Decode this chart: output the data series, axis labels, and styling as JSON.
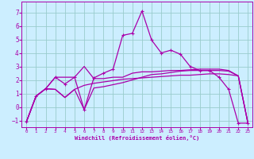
{
  "xlabel": "Windchill (Refroidissement éolien,°C)",
  "xlim": [
    -0.5,
    23.5
  ],
  "ylim": [
    -1.5,
    7.8
  ],
  "yticks": [
    -1,
    0,
    1,
    2,
    3,
    4,
    5,
    6,
    7
  ],
  "xticks": [
    0,
    1,
    2,
    3,
    4,
    5,
    6,
    7,
    8,
    9,
    10,
    11,
    12,
    13,
    14,
    15,
    16,
    17,
    18,
    19,
    20,
    21,
    22,
    23
  ],
  "bg_color": "#cceeff",
  "grid_color": "#99cccc",
  "line_color": "#aa00aa",
  "line1_x": [
    0,
    1,
    2,
    3,
    4,
    5,
    6,
    7,
    8,
    9,
    10,
    11,
    12,
    13,
    14,
    15,
    16,
    17,
    18,
    19,
    20,
    21,
    22,
    23
  ],
  "line1_y": [
    -1.1,
    0.8,
    1.35,
    2.2,
    1.7,
    2.2,
    -0.2,
    2.15,
    2.5,
    2.8,
    5.3,
    5.45,
    7.1,
    4.95,
    4.0,
    4.2,
    3.9,
    3.0,
    2.7,
    2.7,
    2.2,
    1.3,
    -1.2,
    -1.2
  ],
  "line2_x": [
    0,
    1,
    2,
    3,
    4,
    5,
    6,
    7,
    8,
    9,
    10,
    11,
    12,
    13,
    14,
    15,
    16,
    17,
    18,
    19,
    20,
    21,
    22,
    23
  ],
  "line2_y": [
    -1.1,
    0.8,
    1.35,
    1.3,
    0.7,
    1.3,
    1.6,
    1.75,
    1.85,
    1.95,
    2.05,
    2.1,
    2.15,
    2.2,
    2.25,
    2.3,
    2.35,
    2.35,
    2.4,
    2.45,
    2.45,
    2.4,
    2.3,
    -1.2
  ],
  "line3_x": [
    0,
    1,
    2,
    3,
    4,
    5,
    6,
    7,
    8,
    9,
    10,
    11,
    12,
    13,
    14,
    15,
    16,
    17,
    18,
    19,
    20,
    21,
    22,
    23
  ],
  "line3_y": [
    -1.1,
    0.8,
    1.35,
    2.2,
    2.2,
    2.2,
    3.0,
    2.1,
    2.1,
    2.2,
    2.2,
    2.5,
    2.6,
    2.6,
    2.65,
    2.7,
    2.7,
    2.75,
    2.8,
    2.8,
    2.8,
    2.7,
    2.3,
    -1.2
  ],
  "line4_x": [
    0,
    1,
    2,
    3,
    4,
    5,
    6,
    7,
    8,
    9,
    10,
    11,
    12,
    13,
    14,
    15,
    16,
    17,
    18,
    19,
    20,
    21,
    22,
    23
  ],
  "line4_y": [
    -1.1,
    0.8,
    1.35,
    1.3,
    0.7,
    1.3,
    -0.2,
    1.4,
    1.5,
    1.65,
    1.8,
    2.0,
    2.2,
    2.4,
    2.45,
    2.55,
    2.65,
    2.7,
    2.7,
    2.7,
    2.7,
    2.65,
    2.3,
    -1.2
  ]
}
